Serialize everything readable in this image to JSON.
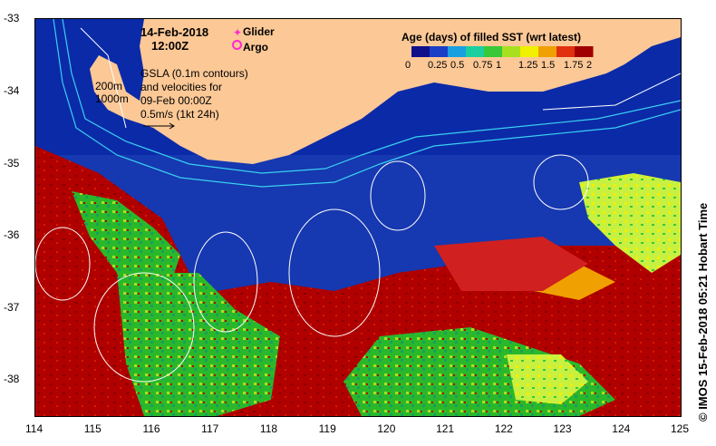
{
  "header": {
    "date": "14-Feb-2018",
    "time": "12:00Z"
  },
  "legend": {
    "glider_label": "Glider",
    "argo_label": "Argo",
    "contour_200": "200m",
    "contour_1000": "1000m",
    "gsla_line1": "GSLA (0.1m contours)",
    "gsla_line2": "and velocities for",
    "gsla_line3": "09-Feb 00:00Z",
    "velocity_scale": "0.5m/s (1kt 24h)"
  },
  "colorbar": {
    "title": "Age (days) of filled SST (wrt latest)",
    "ticks": [
      "0",
      "0.25",
      "0.5",
      "0.75",
      "1",
      "1.25",
      "1.5",
      "1.75",
      "2"
    ],
    "colors": [
      "#10108a",
      "#1a3ec8",
      "#1aa0e0",
      "#1ad0a0",
      "#38c838",
      "#a8e020",
      "#f0f000",
      "#f0a000",
      "#e03010",
      "#a00000"
    ]
  },
  "axes": {
    "x_ticks": [
      "114",
      "115",
      "116",
      "117",
      "118",
      "119",
      "120",
      "121",
      "122",
      "123",
      "124",
      "125"
    ],
    "y_ticks": [
      "-33",
      "-34",
      "-35",
      "-36",
      "-37",
      "-38"
    ]
  },
  "credit": "© IMOS 15-Feb-2018 05:21 Hobart Time",
  "colors": {
    "land": "#fcc896",
    "ocean_deep": "#0a1f8f",
    "ocean_mid": "#1a3cb8",
    "stale_red": "#b00000",
    "green": "#2ab82a",
    "lime": "#b8e020",
    "cyan": "#20c8c0"
  }
}
